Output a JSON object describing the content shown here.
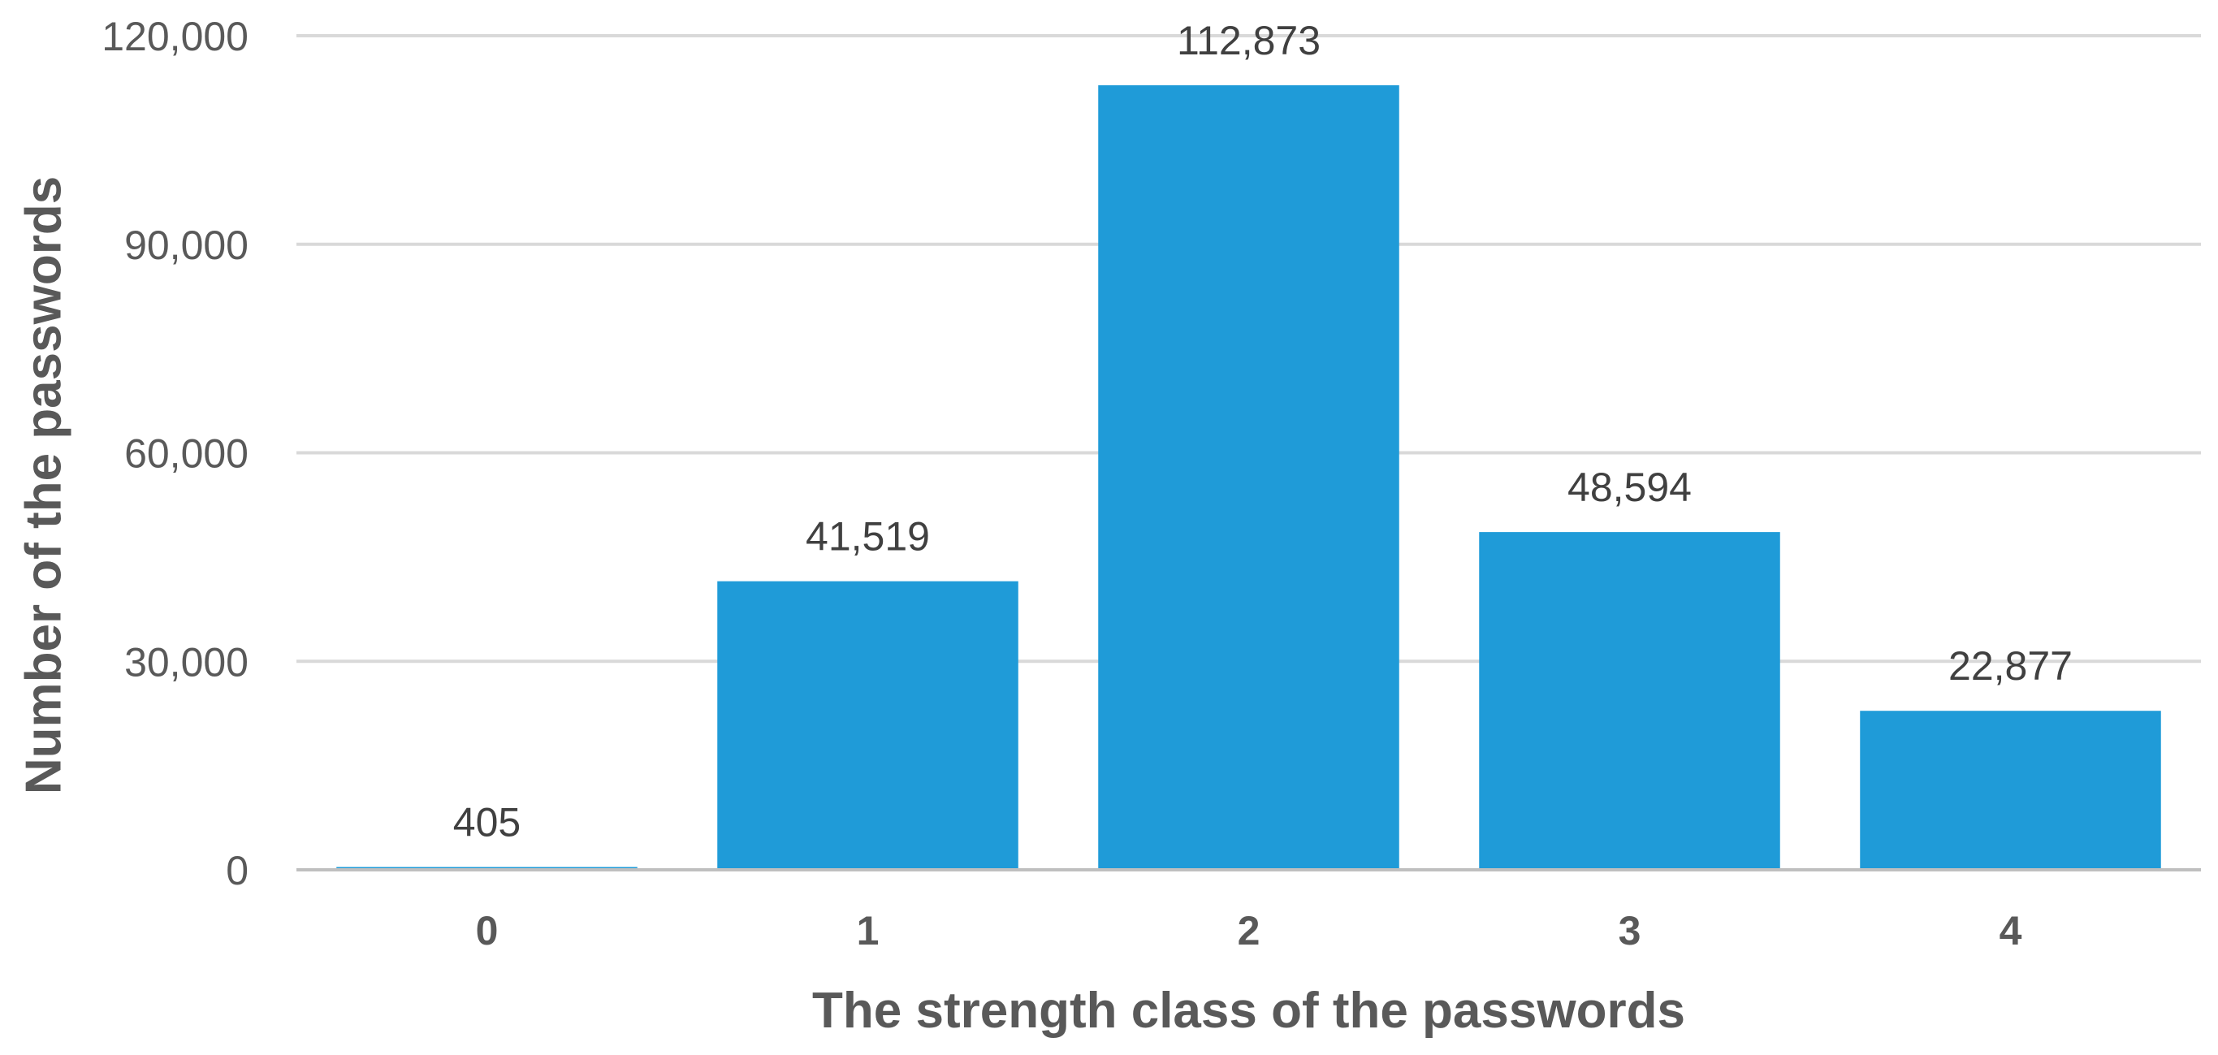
{
  "chart_data": {
    "type": "bar",
    "categories": [
      "0",
      "1",
      "2",
      "3",
      "4"
    ],
    "values": [
      405,
      41519,
      112873,
      48594,
      22877
    ],
    "data_labels": [
      "405",
      "41,519",
      "112,873",
      "48,594",
      "22,877"
    ],
    "title": "",
    "xlabel": "The strength class of the passwords",
    "ylabel": "Number of the passwords",
    "ylim": [
      0,
      120000
    ],
    "yticks": [
      0,
      30000,
      60000,
      90000,
      120000
    ],
    "ytick_labels": [
      "0",
      "30,000",
      "60,000",
      "90,000",
      "120,000"
    ],
    "grid": true,
    "legend": "none",
    "colors": {
      "bar": "#1F9BD8",
      "grid": "#D9D9D9",
      "axis": "#BFBFBF"
    }
  }
}
